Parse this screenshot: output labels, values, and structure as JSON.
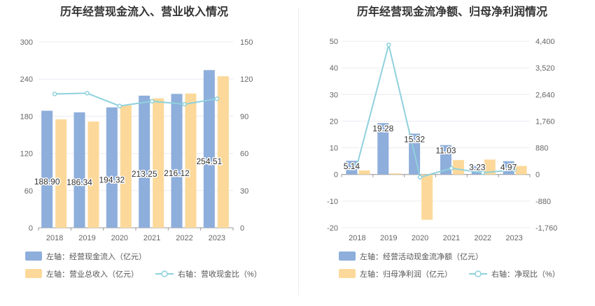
{
  "chart_data": [
    {
      "type": "bar",
      "title": "历年经营现金流入、营业收入情况",
      "categories": [
        "2018",
        "2019",
        "2020",
        "2021",
        "2022",
        "2023"
      ],
      "left_axis": {
        "ticks": [
          "0",
          "60",
          "120",
          "180",
          "240",
          "300"
        ],
        "ylim": [
          0,
          300
        ]
      },
      "right_axis": {
        "ticks": [
          "0",
          "30",
          "60",
          "90",
          "120",
          "150"
        ],
        "ylim": [
          0,
          150
        ]
      },
      "series": [
        {
          "name": "左轴：经营现金流入（亿元）",
          "type": "bar",
          "axis": "left",
          "color": "#8eaedb",
          "values": [
            188.9,
            186.34,
            194.32,
            213.25,
            216.12,
            254.51
          ],
          "labels": [
            "188.90",
            "186.34",
            "194.32",
            "213.25",
            "216.12",
            "254.51"
          ]
        },
        {
          "name": "左轴：营业总收入（亿元）",
          "type": "bar",
          "axis": "left",
          "color": "#fcd99a",
          "values": [
            175.0,
            171.5,
            197.6,
            209.0,
            216.7,
            244.6
          ]
        },
        {
          "name": "右轴：营收现金比（%）",
          "type": "line",
          "axis": "right",
          "color": "#8fd1dc",
          "values": [
            108.0,
            108.6,
            98.3,
            102.1,
            99.7,
            104.1
          ]
        }
      ],
      "grid": true,
      "legend_position": "bottom-left"
    },
    {
      "type": "bar",
      "title": "历年经营现金流净额、归母净利润情况",
      "categories": [
        "2018",
        "2019",
        "2020",
        "2021",
        "2022",
        "2023"
      ],
      "left_axis": {
        "ticks": [
          "-20",
          "-10",
          "0",
          "10",
          "20",
          "30",
          "40",
          "50"
        ],
        "ylim": [
          -20,
          50
        ]
      },
      "right_axis": {
        "ticks": [
          "-1,760",
          "-880",
          "0",
          "880",
          "1,760",
          "2,640",
          "3,520",
          "4,400"
        ],
        "ylim": [
          -1760,
          4400
        ]
      },
      "series": [
        {
          "name": "左轴：经营活动现金流净额（亿元）",
          "type": "bar",
          "axis": "left",
          "color": "#8eaedb",
          "values": [
            5.14,
            19.28,
            15.32,
            11.03,
            3.23,
            4.97
          ],
          "labels": [
            "5.14",
            "19.28",
            "15.32",
            "11.03",
            "3.23",
            "4.97"
          ]
        },
        {
          "name": "左轴：归母净利润（亿元）",
          "type": "bar",
          "axis": "left",
          "color": "#fcd99a",
          "values": [
            1.5,
            0.4,
            -17.0,
            5.4,
            5.6,
            3.2
          ]
        },
        {
          "name": "右轴：净现比（%）",
          "type": "line",
          "axis": "right",
          "color": "#8fd1dc",
          "values": [
            342,
            4280,
            -90,
            204,
            58,
            155
          ]
        }
      ],
      "grid": true,
      "legend_position": "bottom-left"
    }
  ]
}
